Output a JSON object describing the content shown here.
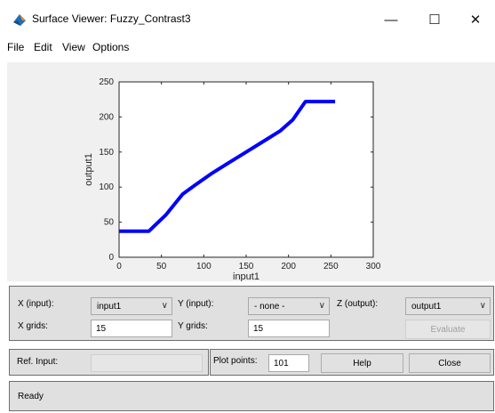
{
  "window": {
    "title": "Surface Viewer: Fuzzy_Contrast3",
    "minimize_glyph": "—",
    "maximize_glyph": "☐",
    "close_glyph": "✕"
  },
  "menu": [
    "File",
    "Edit",
    "View",
    "Options"
  ],
  "chart_data": {
    "type": "line",
    "xlabel": "input1",
    "ylabel": "output1",
    "xlim": [
      0,
      300
    ],
    "ylim": [
      0,
      250
    ],
    "xticks": [
      0,
      50,
      100,
      150,
      200,
      250,
      300
    ],
    "yticks": [
      0,
      50,
      100,
      150,
      200,
      250
    ],
    "series": [
      {
        "color": "#0000ff",
        "x": [
          0,
          35,
          42,
          55,
          65,
          75,
          90,
          110,
          130,
          150,
          170,
          190,
          205,
          220,
          255
        ],
        "y": [
          37,
          37,
          45,
          60,
          75,
          90,
          103,
          120,
          135,
          150,
          165,
          180,
          196,
          222,
          222
        ]
      }
    ],
    "grid": false
  },
  "controls": {
    "x_input_label": "X (input):",
    "x_input_value": "input1",
    "y_input_label": "Y (input):",
    "y_input_value": "- none -",
    "z_output_label": "Z (output):",
    "z_output_value": "output1",
    "x_grids_label": "X grids:",
    "x_grids_value": "15",
    "y_grids_label": "Y grids:",
    "y_grids_value": "15",
    "evaluate_label": "Evaluate",
    "ref_input_label": "Ref. Input:",
    "ref_input_value": "",
    "plot_points_label": "Plot points:",
    "plot_points_value": "101",
    "help_label": "Help",
    "close_label": "Close",
    "dropdown_glyph": "∨"
  },
  "status": {
    "text": "Ready"
  }
}
